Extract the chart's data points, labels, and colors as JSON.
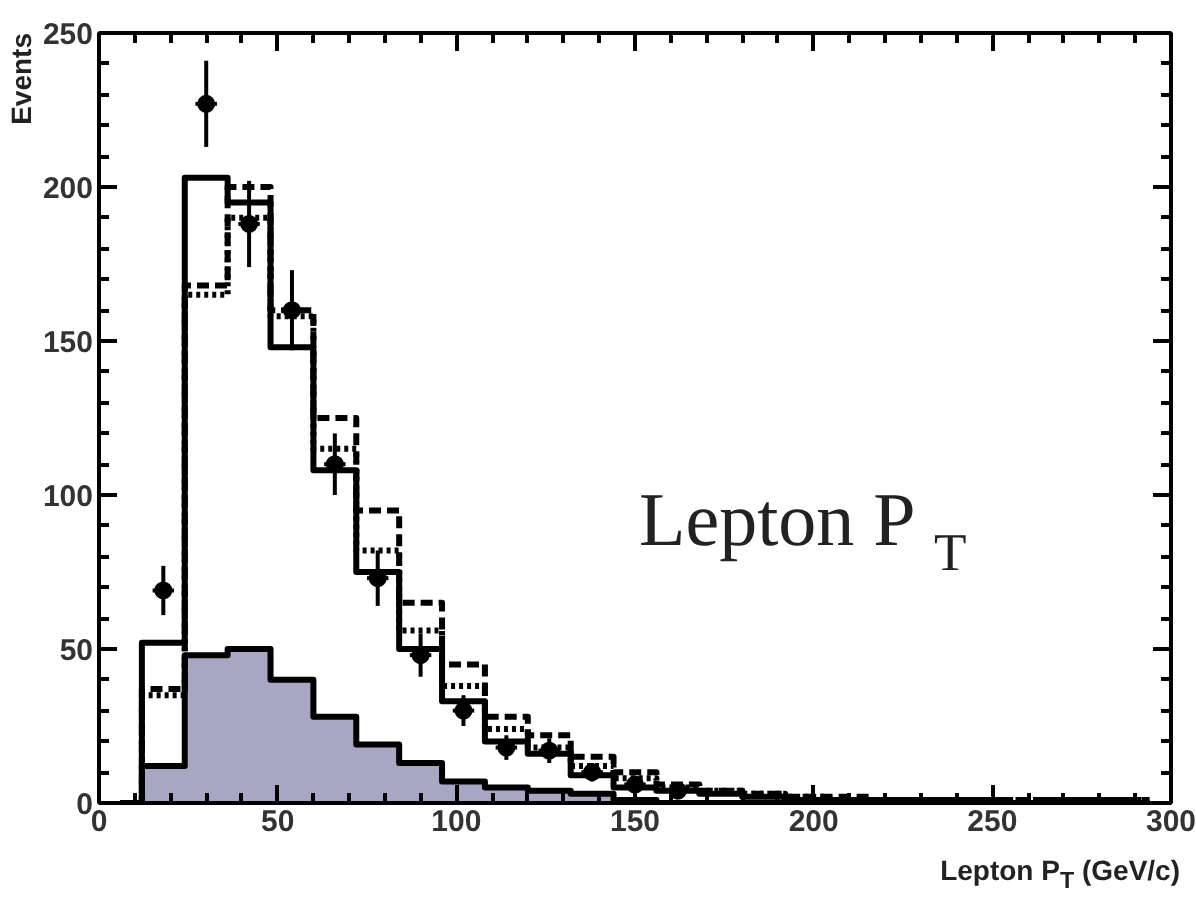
{
  "chart_data": {
    "type": "step",
    "xlabel": "Lepton P$_{T}$ (GeV/c)",
    "ylabel": "Events",
    "annotations": [
      "Lepton P$_{T}$"
    ],
    "x": [
      6,
      18,
      30,
      42,
      54,
      66,
      78,
      90,
      102,
      114,
      126,
      138,
      150,
      162,
      174,
      186,
      198,
      210,
      222,
      234,
      246,
      258,
      270,
      282,
      294
    ],
    "series": [
      {
        "type": "area",
        "color": "#a9a6c4",
        "values": [
          0,
          12,
          48,
          50,
          40,
          28,
          19,
          13,
          7,
          5,
          4,
          3,
          1,
          0,
          0,
          0,
          0,
          0,
          0,
          0,
          0,
          0,
          0,
          0,
          0
        ]
      },
      {
        "color": "#000000",
        "line_style": "solid",
        "values": [
          0,
          52,
          203,
          195,
          148,
          108,
          75,
          50,
          33,
          20,
          16,
          9,
          5,
          4,
          3,
          2,
          1,
          1,
          1,
          1,
          1,
          0,
          1,
          1,
          0
        ]
      },
      {
        "color": "#000000",
        "line_style": "dashed",
        "values": [
          0,
          37,
          168,
          200,
          160,
          125,
          95,
          65,
          45,
          28,
          22,
          15,
          10,
          6,
          4,
          3,
          2,
          2,
          1,
          1,
          1,
          1,
          1,
          1,
          1
        ]
      },
      {
        "color": "#000000",
        "line_style": "dotted",
        "values": [
          0,
          35,
          165,
          190,
          158,
          115,
          82,
          56,
          38,
          24,
          18,
          12,
          8,
          5,
          4,
          3,
          2,
          1,
          1,
          1,
          1,
          1,
          1,
          1,
          1
        ]
      },
      {
        "type": "scatter",
        "color": "#000000",
        "marker": "circle",
        "x": [
          18,
          30,
          42,
          54,
          66,
          78,
          90,
          102,
          114,
          126,
          138,
          150,
          162
        ],
        "values": [
          69,
          227,
          188,
          160,
          110,
          73,
          48,
          30,
          18,
          17,
          10,
          6,
          4
        ],
        "errors": [
          8,
          14,
          14,
          13,
          10,
          9,
          7,
          5,
          4,
          4,
          3,
          2,
          2
        ],
        "xerrors": [
          3,
          3,
          3,
          3,
          3,
          3,
          3,
          3,
          3,
          3,
          3,
          3,
          3
        ]
      }
    ],
    "xlim": [
      0,
      300
    ],
    "xticks": [
      0,
      50,
      100,
      150,
      200,
      250,
      300
    ],
    "ylim": [
      0,
      250
    ],
    "yticks": [
      0,
      50,
      100,
      150,
      200,
      250
    ],
    "grid": false
  }
}
